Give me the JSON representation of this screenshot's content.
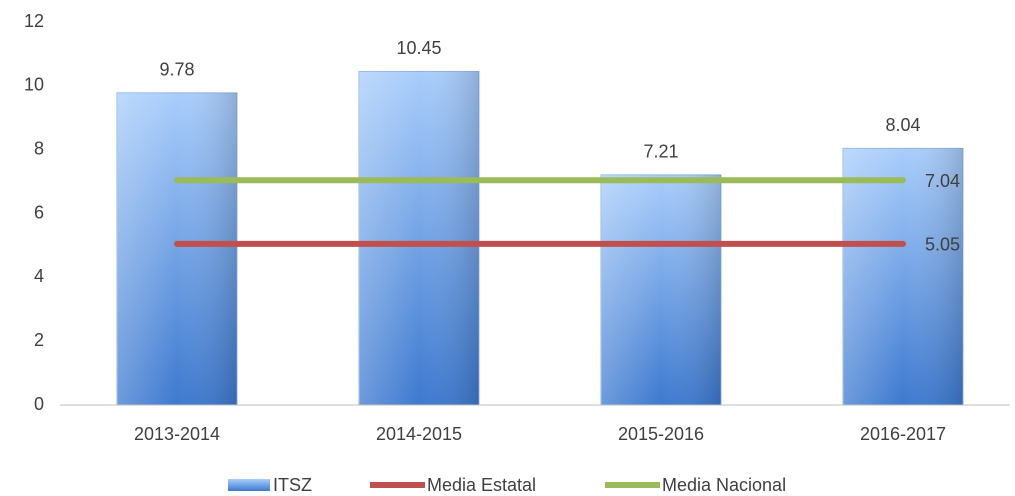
{
  "chart_data": {
    "type": "bar",
    "categories": [
      "2013-2014",
      "2014-2015",
      "2015-2016",
      "2016-2017"
    ],
    "series": [
      {
        "name": "ITSZ",
        "type": "bar",
        "color": "#4a86d8",
        "values": [
          9.78,
          10.45,
          7.21,
          8.04
        ]
      },
      {
        "name": "Media Estatal",
        "type": "line",
        "color": "#c0504d",
        "values": [
          5.05,
          5.05,
          5.05,
          5.05
        ]
      },
      {
        "name": "Media Nacional",
        "type": "line",
        "color": "#9bbb59",
        "values": [
          7.04,
          7.04,
          7.04,
          7.04
        ]
      }
    ],
    "ylim": [
      0,
      12
    ],
    "yticks": [
      0,
      2,
      4,
      6,
      8,
      10,
      12
    ],
    "grid": false
  }
}
